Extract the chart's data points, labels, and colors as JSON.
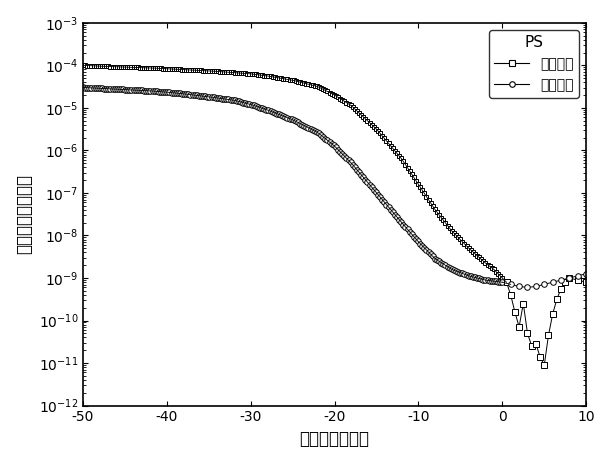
{
  "title": "PS",
  "xlabel": "棵电压（伏特）",
  "ylabel": "源漏电流（安培）",
  "legend_labels": [
    "初始状态",
    "编程状态"
  ],
  "xlim": [
    -50,
    10
  ],
  "ylim_log": [
    -12,
    -3
  ],
  "line_color": "#000000",
  "xticks": [
    -50,
    -40,
    -30,
    -20,
    -10,
    0,
    10
  ],
  "init_vg_key": [
    -50,
    -48,
    -45,
    -42,
    -40,
    -38,
    -35,
    -32,
    -30,
    -28,
    -25,
    -22,
    -20,
    -18,
    -15,
    -12,
    -10,
    -8,
    -6,
    -4,
    -2,
    -1,
    0,
    0.5,
    1,
    1.5,
    2,
    2.5,
    3,
    3.5,
    4,
    4.5,
    5,
    5.5,
    6,
    6.5,
    7,
    7.5,
    8,
    9,
    10
  ],
  "init_log_key": [
    -4.0,
    -4.02,
    -4.04,
    -4.06,
    -4.08,
    -4.1,
    -4.13,
    -4.17,
    -4.2,
    -4.25,
    -4.35,
    -4.5,
    -4.7,
    -4.95,
    -5.5,
    -6.2,
    -6.8,
    -7.4,
    -7.9,
    -8.3,
    -8.65,
    -8.8,
    -9.0,
    -9.1,
    -9.4,
    -9.8,
    -10.15,
    -9.6,
    -10.3,
    -10.6,
    -10.55,
    -10.85,
    -11.05,
    -10.35,
    -9.85,
    -9.5,
    -9.25,
    -9.1,
    -9.0,
    -9.05,
    -9.1
  ],
  "prog_vg_key": [
    -50,
    -48,
    -45,
    -42,
    -40,
    -38,
    -35,
    -32,
    -30,
    -28,
    -25,
    -22,
    -20,
    -18,
    -15,
    -12,
    -10,
    -8,
    -6,
    -4,
    -2,
    0,
    1,
    2,
    3,
    4,
    5,
    6,
    7,
    8,
    9,
    10
  ],
  "prog_log_key": [
    -4.52,
    -4.54,
    -4.57,
    -4.6,
    -4.63,
    -4.67,
    -4.74,
    -4.82,
    -4.92,
    -5.05,
    -5.28,
    -5.58,
    -5.9,
    -6.3,
    -7.0,
    -7.7,
    -8.15,
    -8.55,
    -8.8,
    -8.95,
    -9.05,
    -9.1,
    -9.15,
    -9.2,
    -9.22,
    -9.2,
    -9.15,
    -9.1,
    -9.05,
    -9.0,
    -8.95,
    -8.9
  ]
}
